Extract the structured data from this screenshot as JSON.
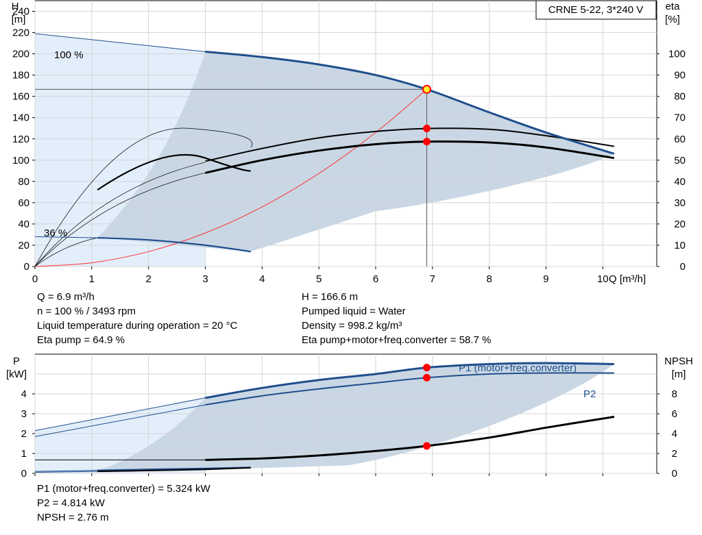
{
  "head_panel": {
    "model_label": "CRNE 5-22, 3*240 V",
    "y_left_title": "H",
    "y_left_unit": "[m]",
    "y_right_title": "eta",
    "y_right_unit": "[%]",
    "x_axis_label": "Q [m³/h]",
    "speed_max_label": "100 %",
    "speed_min_label": "36 %"
  },
  "power_panel": {
    "y_left_title": "P",
    "y_left_unit": "[kW]",
    "y_right_title": "NPSH",
    "y_right_unit": "[m]",
    "p1_label": "P1 (motor+freq.converter)",
    "p2_label": "P2"
  },
  "duty_info": {
    "col1": [
      "Q = 6.9 m³/h",
      "n = 100 % / 3493 rpm",
      "Liquid temperature during operation = 20 °C",
      "Eta pump = 64.9 %"
    ],
    "col2": [
      "H = 166.6 m",
      "Pumped liquid = Water",
      "Density = 998.2 kg/m³",
      "Eta pump+motor+freq.converter = 58.7 %"
    ],
    "col3": [
      "P1 (motor+freq.converter) = 5.324 kW",
      "P2 = 4.814 kW",
      "NPSH = 2.76 m"
    ]
  },
  "colors": {
    "pump_curve": "#1f4e8c",
    "eta_curve": "#000000",
    "system_curve": "#ff3030",
    "duty_point": "#ff0000",
    "duty_point_head_fill": "#ffff33",
    "envelope_light": "#e3eefb",
    "envelope_dark": "#c9d7e5"
  },
  "chart_data": [
    {
      "type": "line",
      "xlabel": "Q [m³/h]",
      "ylabel": "H [m]",
      "y2label": "eta [%]",
      "xlim": [
        0,
        10.95
      ],
      "ylim": [
        0,
        250
      ],
      "y2lim": [
        0,
        125
      ],
      "x_ticks": [
        0,
        1,
        2,
        3,
        4,
        5,
        6,
        7,
        8,
        9,
        10
      ],
      "y_ticks": [
        0,
        20,
        40,
        60,
        80,
        100,
        120,
        140,
        160,
        180,
        200,
        220,
        240
      ],
      "y2_ticks": [
        0,
        10,
        20,
        30,
        40,
        50,
        60,
        70,
        80,
        90,
        100
      ],
      "grid": true,
      "series": [
        {
          "name": "100 %",
          "axis": "H",
          "x": [
            0,
            3.0,
            4.0,
            5.0,
            6.0,
            6.9,
            8.0,
            9.0,
            10.2
          ],
          "y": [
            219,
            202,
            197,
            190,
            180,
            166.6,
            145,
            126,
            106
          ]
        },
        {
          "name": "36 %",
          "axis": "H",
          "x": [
            0,
            1.1,
            2.0,
            3.0,
            3.8
          ],
          "y": [
            28,
            27,
            25,
            20,
            14
          ]
        },
        {
          "name": "",
          "axis": "eta",
          "x": [
            3.0,
            4.0,
            5.0,
            6.0,
            6.9,
            8.0,
            9.0,
            10.2
          ],
          "y": [
            49.5,
            55.5,
            60.5,
            63.5,
            64.9,
            64.5,
            61.5,
            56.5
          ]
        },
        {
          "name": "",
          "axis": "eta",
          "x": [
            3.0,
            4.0,
            5.0,
            6.0,
            6.9,
            8.0,
            9.0,
            10.2
          ],
          "y": [
            44,
            50,
            54.5,
            57.5,
            58.7,
            58.3,
            56,
            51
          ]
        },
        {
          "name": "",
          "axis": "H",
          "x": [
            0,
            1,
            2,
            3,
            4,
            5,
            6,
            6.9
          ],
          "y": [
            0,
            3.5,
            14,
            31.5,
            56,
            87.5,
            126,
            166.6
          ]
        }
      ],
      "duty_point": {
        "x": 6.9,
        "H": 166.6,
        "eta_pump": 64.9,
        "eta_total": 58.7
      }
    },
    {
      "type": "line",
      "xlabel": "Q [m³/h]",
      "ylabel": "P [kW]",
      "y2label": "NPSH [m]",
      "xlim": [
        0,
        10.95
      ],
      "ylim": [
        0,
        6
      ],
      "y2lim": [
        0,
        12
      ],
      "y_ticks": [
        0,
        1,
        2,
        3,
        4
      ],
      "y2_ticks": [
        0,
        2,
        4,
        6,
        8
      ],
      "grid": true,
      "series": [
        {
          "name": "P1 (motor+freq.converter)",
          "axis": "P",
          "x": [
            0,
            3.0,
            4.0,
            5.0,
            6.0,
            6.9,
            8.0,
            9.0,
            10.2
          ],
          "y": [
            2.15,
            3.8,
            4.3,
            4.7,
            5.0,
            5.324,
            5.5,
            5.55,
            5.5
          ]
        },
        {
          "name": "P2",
          "axis": "P",
          "x": [
            0,
            3.0,
            4.0,
            5.0,
            6.0,
            6.9,
            8.0,
            9.0,
            10.2
          ],
          "y": [
            1.85,
            3.45,
            3.9,
            4.25,
            4.55,
            4.814,
            5.0,
            5.05,
            5.05
          ]
        },
        {
          "name": "",
          "axis": "P",
          "x": [
            0,
            1.1,
            2.0,
            3.0,
            3.8
          ],
          "y": [
            0.1,
            0.15,
            0.2,
            0.25,
            0.3
          ]
        },
        {
          "name": "",
          "axis": "P",
          "x": [
            0,
            1.1,
            2.0,
            3.0,
            3.8
          ],
          "y": [
            0.05,
            0.1,
            0.14,
            0.2,
            0.28
          ]
        },
        {
          "name": "NPSH",
          "axis": "NPSH",
          "x": [
            3.0,
            4.0,
            5.0,
            6.0,
            6.9,
            8.0,
            9.0,
            10.2
          ],
          "y": [
            1.35,
            1.5,
            1.8,
            2.25,
            2.76,
            3.6,
            4.6,
            5.7
          ]
        }
      ],
      "duty_point": {
        "x": 6.9,
        "P1": 5.324,
        "P2": 4.814,
        "NPSH": 2.76
      }
    }
  ]
}
